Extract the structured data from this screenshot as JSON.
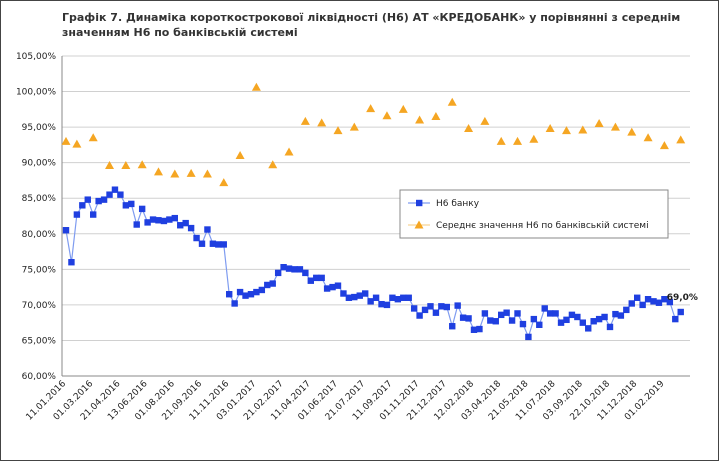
{
  "chart_data": {
    "type": "line",
    "title_lines": [
      "Графік 7. Динаміка короткострокової ліквідності (Н6) АТ «КРЕДОБАНК» у порівнянні з середнім",
      "значенням Н6 по банківській системі"
    ],
    "categories": [
      "11.01.2016",
      null,
      null,
      null,
      null,
      "01.03.2016",
      null,
      null,
      null,
      null,
      "21.04.2016",
      null,
      null,
      null,
      null,
      "13.06.2016",
      null,
      null,
      null,
      null,
      "01.08.2016",
      null,
      null,
      null,
      null,
      "21.09.2016",
      null,
      null,
      null,
      null,
      "11.11.2016",
      null,
      null,
      null,
      null,
      "03.01.2017",
      null,
      null,
      null,
      null,
      "21.02.2017",
      null,
      null,
      null,
      null,
      "11.04.2017",
      null,
      null,
      null,
      null,
      "01.06.2017",
      null,
      null,
      null,
      null,
      "21.07.2017",
      null,
      null,
      null,
      null,
      "11.09.2017",
      null,
      null,
      null,
      null,
      "01.11.2017",
      null,
      null,
      null,
      null,
      "21.12.2017",
      null,
      null,
      null,
      null,
      "12.02.2018",
      null,
      null,
      null,
      null,
      "03.04.2018",
      null,
      null,
      null,
      null,
      "21.05.2018",
      null,
      null,
      null,
      null,
      "11.07.2018",
      null,
      null,
      null,
      null,
      "03.09.2018",
      null,
      null,
      null,
      null,
      "22.10.2018",
      null,
      null,
      null,
      null,
      "11.12.2018",
      null,
      null,
      null,
      null,
      "01.02.2019",
      null,
      null,
      null
    ],
    "series": [
      {
        "name": "Н6 банку",
        "color": "#1f3fe0",
        "marker": "square",
        "line": true,
        "values": [
          80.5,
          76,
          82.7,
          84,
          84.8,
          82.7,
          84.6,
          84.8,
          85.5,
          86.2,
          85.5,
          84,
          84.2,
          81.3,
          83.5,
          81.6,
          82,
          81.9,
          81.8,
          82,
          82.2,
          81.2,
          81.5,
          80.8,
          79.4,
          78.6,
          80.6,
          78.6,
          78.5,
          78.5,
          71.5,
          70.2,
          71.8,
          71.3,
          71.5,
          71.8,
          72.1,
          72.8,
          73,
          74.5,
          75.3,
          75.1,
          75,
          75,
          74.5,
          73.4,
          73.8,
          73.8,
          72.3,
          72.5,
          72.7,
          71.6,
          71,
          71.1,
          71.3,
          71.6,
          70.5,
          71,
          70.1,
          70,
          71,
          70.8,
          71,
          71,
          69.5,
          68.5,
          69.3,
          69.8,
          68.9,
          69.8,
          69.7,
          67,
          69.9,
          68.2,
          68.1,
          66.5,
          66.6,
          68.8,
          67.8,
          67.7,
          68.6,
          68.9,
          67.8,
          68.8,
          67.3,
          65.5,
          68,
          67.2,
          69.5,
          68.8,
          68.8,
          67.5,
          67.9,
          68.6,
          68.3,
          67.5,
          66.7,
          67.7,
          68,
          68.3,
          66.9,
          68.7,
          68.5,
          69.3,
          70.2,
          71,
          70,
          70.8,
          70.5,
          70.3,
          70.8,
          70.4,
          68,
          69
        ],
        "value_labels": [
          null,
          null,
          null,
          null,
          null,
          null,
          null,
          null,
          null,
          null,
          null,
          null,
          null,
          null,
          null,
          null,
          null,
          null,
          null,
          null,
          null,
          null,
          null,
          null,
          null,
          null,
          null,
          null,
          null,
          null,
          null,
          null,
          null,
          null,
          null,
          null,
          null,
          null,
          null,
          null,
          null,
          null,
          null,
          null,
          null,
          null,
          null,
          null,
          null,
          null,
          null,
          null,
          null,
          null,
          null,
          null,
          null,
          null,
          null,
          null,
          null,
          null,
          null,
          null,
          null,
          null,
          null,
          null,
          null,
          null,
          null,
          null,
          null,
          null,
          null,
          null,
          null,
          null,
          null,
          null,
          null,
          null,
          null,
          null,
          null,
          null,
          null,
          null,
          null,
          null,
          null,
          null,
          null,
          null,
          null,
          null,
          null,
          null,
          null,
          null,
          null,
          null,
          null,
          null,
          null,
          null,
          null,
          null,
          null,
          null,
          null,
          null,
          null,
          "69,0%"
        ]
      },
      {
        "name": "Середнє значення Н6 по банківській системі",
        "color": "#f5a623",
        "marker": "triangle",
        "line": false,
        "values": [
          93,
          null,
          92.6,
          null,
          null,
          93.5,
          null,
          null,
          89.6,
          null,
          null,
          89.6,
          null,
          null,
          89.7,
          null,
          null,
          88.7,
          null,
          null,
          88.4,
          null,
          null,
          88.5,
          null,
          null,
          88.4,
          null,
          null,
          87.2,
          null,
          null,
          91,
          null,
          null,
          100.6,
          null,
          null,
          89.7,
          null,
          null,
          91.5,
          null,
          null,
          95.8,
          null,
          null,
          95.6,
          null,
          null,
          94.5,
          null,
          null,
          95,
          null,
          null,
          97.6,
          null,
          null,
          96.6,
          null,
          null,
          97.5,
          null,
          null,
          96,
          null,
          null,
          96.5,
          null,
          null,
          98.5,
          null,
          null,
          94.8,
          null,
          null,
          95.8,
          null,
          null,
          93,
          null,
          null,
          93,
          null,
          null,
          93.3,
          null,
          null,
          94.8,
          null,
          null,
          94.5,
          null,
          null,
          94.6,
          null,
          null,
          95.5,
          null,
          null,
          95,
          null,
          null,
          94.3,
          null,
          null,
          93.5,
          null,
          null,
          92.4,
          null,
          null,
          93.2
        ]
      }
    ],
    "ylim": [
      60,
      105
    ],
    "yticks": [
      {
        "value": 60,
        "label": "60,00%"
      },
      {
        "value": 65,
        "label": "65,00%"
      },
      {
        "value": 70,
        "label": "70,00%"
      },
      {
        "value": 75,
        "label": "75,00%"
      },
      {
        "value": 80,
        "label": "80,00%"
      },
      {
        "value": 85,
        "label": "85,00%"
      },
      {
        "value": 90,
        "label": "90,00%"
      },
      {
        "value": 95,
        "label": "95,00%"
      },
      {
        "value": 100,
        "label": "100,00%"
      },
      {
        "value": 105,
        "label": "105,00%"
      }
    ],
    "grid": true,
    "legend": "right"
  }
}
